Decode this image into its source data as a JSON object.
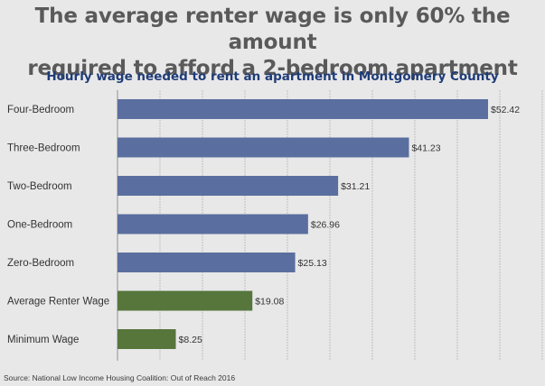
{
  "headline": {
    "line1": "The average renter wage is only 60% the amount",
    "line2": "required to afford a 2-bedroom apartment"
  },
  "source": "Source: National Low Income Housing Coalition: Out of Reach 2016",
  "chart_data": {
    "type": "bar",
    "orientation": "horizontal",
    "title": "Hourly wage needed to rent an apartment in Montgomery County",
    "categories": [
      "Four-Bedroom",
      "Three-Bedroom",
      "Two-Bedroom",
      "One-Bedroom",
      "Zero-Bedroom",
      "Average Renter Wage",
      "Minimum Wage"
    ],
    "values": [
      52.42,
      41.23,
      31.21,
      26.96,
      25.13,
      19.08,
      8.25
    ],
    "data_labels": [
      "$52.42",
      "$41.23",
      "$31.21",
      "$26.96",
      "$25.13",
      "$19.08",
      "$8.25"
    ],
    "xlim": [
      0,
      52.42
    ],
    "grid": true,
    "colors": {
      "housing": "#5a6f9f",
      "wage": "#56763c",
      "grid": "#8a8a8a",
      "axis": "#a0a0a0"
    },
    "bar_color_keys": [
      "housing",
      "housing",
      "housing",
      "housing",
      "housing",
      "wage",
      "wage"
    ]
  }
}
